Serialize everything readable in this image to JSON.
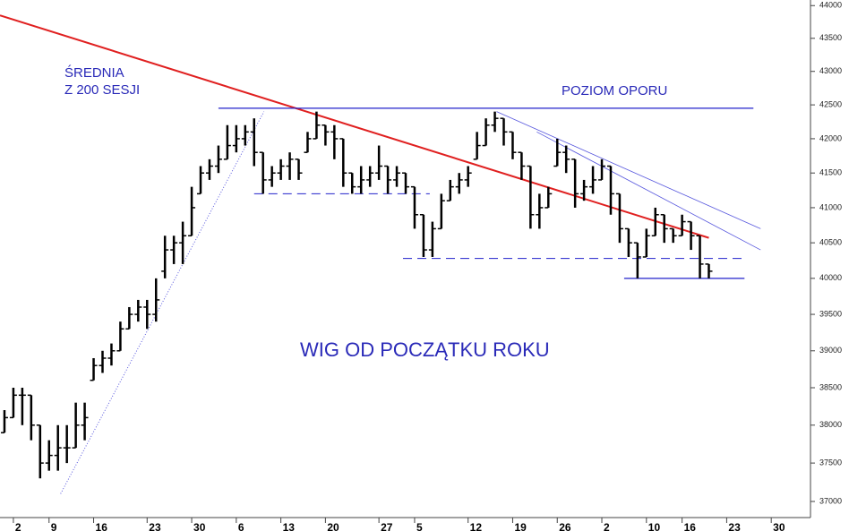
{
  "chart_data": {
    "type": "ohlc",
    "annotations": [
      "ŚREDNIA",
      "Z 200 SESJI",
      "POZIOM OPORU",
      "WIG OD POCZĄTKU ROKU"
    ],
    "x": [
      0,
      1,
      2,
      3,
      4,
      5,
      6,
      7,
      8,
      9,
      10,
      11,
      12,
      13,
      14,
      15,
      16,
      17,
      18,
      19,
      20,
      21,
      22,
      23,
      24,
      25,
      26,
      27,
      28,
      29,
      30,
      31,
      32,
      33,
      34,
      35,
      36,
      37,
      38,
      39,
      40,
      41,
      42,
      43,
      44,
      45,
      46,
      47,
      48,
      49,
      50,
      51,
      52,
      53,
      54,
      55,
      56,
      57,
      58,
      59,
      60,
      61,
      62,
      63,
      64,
      65,
      66,
      67,
      68,
      69,
      70,
      71,
      72,
      73,
      74,
      75,
      76,
      77,
      78,
      79
    ],
    "open": [
      37900,
      38100,
      38400,
      38400,
      38000,
      37500,
      37600,
      37700,
      37700,
      38000,
      38600,
      38800,
      38900,
      39000,
      39300,
      39500,
      39600,
      39500,
      40100,
      40400,
      40500,
      40600,
      41200,
      41500,
      41600,
      41700,
      41900,
      42000,
      42100,
      41800,
      41400,
      41500,
      41600,
      41700,
      41800,
      42000,
      42200,
      42100,
      42000,
      41500,
      41300,
      41400,
      41500,
      41600,
      41400,
      41500,
      41300,
      40900,
      40400,
      40700,
      41100,
      41300,
      41400,
      41700,
      41900,
      42200,
      42300,
      42100,
      41800,
      41600,
      40900,
      41000,
      41600,
      41800,
      41700,
      41200,
      41300,
      41400,
      41600,
      41200,
      40700,
      40500,
      40300,
      40600,
      40900,
      40700,
      40600,
      40800,
      40600,
      40200
    ],
    "high": [
      38200,
      38500,
      38500,
      38400,
      38000,
      37800,
      38000,
      38000,
      38300,
      38300,
      38900,
      39000,
      39100,
      39400,
      39600,
      39700,
      39700,
      40000,
      40600,
      40600,
      40800,
      41300,
      41600,
      41700,
      41900,
      42200,
      42200,
      42200,
      42300,
      41800,
      41600,
      41700,
      41800,
      41700,
      42100,
      42400,
      42200,
      42200,
      42000,
      41500,
      41600,
      41600,
      41900,
      41600,
      41600,
      41500,
      41300,
      40900,
      40800,
      41200,
      41400,
      41500,
      41600,
      42100,
      42300,
      42400,
      42300,
      42100,
      41800,
      41600,
      41200,
      41300,
      42000,
      41900,
      41700,
      41400,
      41600,
      41700,
      41600,
      41200,
      40700,
      40500,
      40700,
      41000,
      40900,
      40700,
      40900,
      40800,
      40600,
      40200
    ],
    "low": [
      37900,
      38100,
      38000,
      37800,
      37300,
      37400,
      37400,
      37500,
      37700,
      37800,
      38600,
      38700,
      38800,
      39000,
      39300,
      39400,
      39300,
      39400,
      40000,
      40200,
      40200,
      40600,
      41200,
      41400,
      41500,
      41700,
      41800,
      41900,
      41600,
      41200,
      41300,
      41400,
      41400,
      41400,
      41800,
      42000,
      41900,
      41700,
      41300,
      41200,
      41200,
      41300,
      41400,
      41200,
      41300,
      41200,
      40700,
      40300,
      40300,
      40700,
      41100,
      41200,
      41300,
      41700,
      41900,
      42100,
      41900,
      41700,
      41400,
      40700,
      40700,
      41000,
      41600,
      41500,
      41000,
      41100,
      41200,
      41400,
      40900,
      40500,
      40300,
      40000,
      40300,
      40600,
      40500,
      40500,
      40600,
      40400,
      40000,
      40000
    ],
    "close": [
      38100,
      38400,
      38400,
      38000,
      37500,
      37600,
      37700,
      37700,
      38000,
      38100,
      38800,
      38900,
      39000,
      39300,
      39500,
      39600,
      39500,
      39700,
      40400,
      40500,
      40600,
      41000,
      41500,
      41600,
      41700,
      41900,
      42000,
      42100,
      41800,
      41400,
      41500,
      41600,
      41700,
      41500,
      42000,
      42200,
      42100,
      42000,
      41500,
      41300,
      41400,
      41500,
      41600,
      41400,
      41500,
      41300,
      40900,
      40400,
      40700,
      41100,
      41300,
      41400,
      41500,
      41900,
      42200,
      42300,
      42100,
      41800,
      41600,
      40900,
      41000,
      41200,
      41800,
      41700,
      41200,
      41300,
      41400,
      41600,
      41200,
      40700,
      40500,
      40300,
      40600,
      40900,
      40700,
      40600,
      40800,
      40600,
      40200,
      40100
    ],
    "color": "#000000",
    "overlays": [
      {
        "color": "#e02020",
        "style": "thick",
        "x": [
          -0.5,
          79
        ],
        "values": [
          43850,
          40570
        ]
      },
      {
        "color": "#2222cc",
        "style": "solid",
        "x": [
          24,
          84
        ],
        "values": [
          42450,
          42450
        ]
      },
      {
        "color": "#2222cc",
        "style": "dashed",
        "x": [
          28,
          47.7
        ],
        "values": [
          41200,
          41200
        ]
      },
      {
        "color": "#2222cc",
        "style": "dashed",
        "x": [
          44.7,
          82.8
        ],
        "values": [
          40280,
          40280
        ]
      },
      {
        "color": "#2222cc",
        "style": "solid",
        "x": [
          69.5,
          83
        ],
        "values": [
          40000,
          40000
        ]
      },
      {
        "color": "#5555dd",
        "style": "thin",
        "x": [
          55.2,
          84.8
        ],
        "values": [
          42400,
          40700
        ]
      },
      {
        "color": "#5555dd",
        "style": "thin",
        "x": [
          59.7,
          84.8
        ],
        "values": [
          42100,
          40400
        ]
      },
      {
        "color": "#5555dd",
        "style": "dotted",
        "x": [
          6.3,
          29.1
        ],
        "values": [
          37100,
          42400
        ]
      }
    ],
    "log_scale": true,
    "xlim": [
      -0.5,
      90.2
    ],
    "xticks": [
      {
        "value": 1,
        "label": "2"
      },
      {
        "value": 5,
        "label": "9"
      },
      {
        "value": 10,
        "label": "16"
      },
      {
        "value": 16,
        "label": "23"
      },
      {
        "value": 21,
        "label": "30"
      },
      {
        "value": 26,
        "label": "6"
      },
      {
        "value": 31,
        "label": "13"
      },
      {
        "value": 36,
        "label": "20"
      },
      {
        "value": 42,
        "label": "27"
      },
      {
        "value": 46,
        "label": "5"
      },
      {
        "value": 52,
        "label": "12"
      },
      {
        "value": 57,
        "label": "19"
      },
      {
        "value": 62,
        "label": "26"
      },
      {
        "value": 67,
        "label": "2"
      },
      {
        "value": 72,
        "label": "10"
      },
      {
        "value": 76,
        "label": "16"
      },
      {
        "value": 81,
        "label": "23"
      },
      {
        "value": 86,
        "label": "30"
      }
    ],
    "ylim": [
      36850,
      44100
    ],
    "yticks": [
      37000,
      37500,
      38000,
      38500,
      39000,
      39500,
      40000,
      40500,
      41000,
      41500,
      42000,
      42500,
      43000,
      43500,
      44000
    ]
  }
}
